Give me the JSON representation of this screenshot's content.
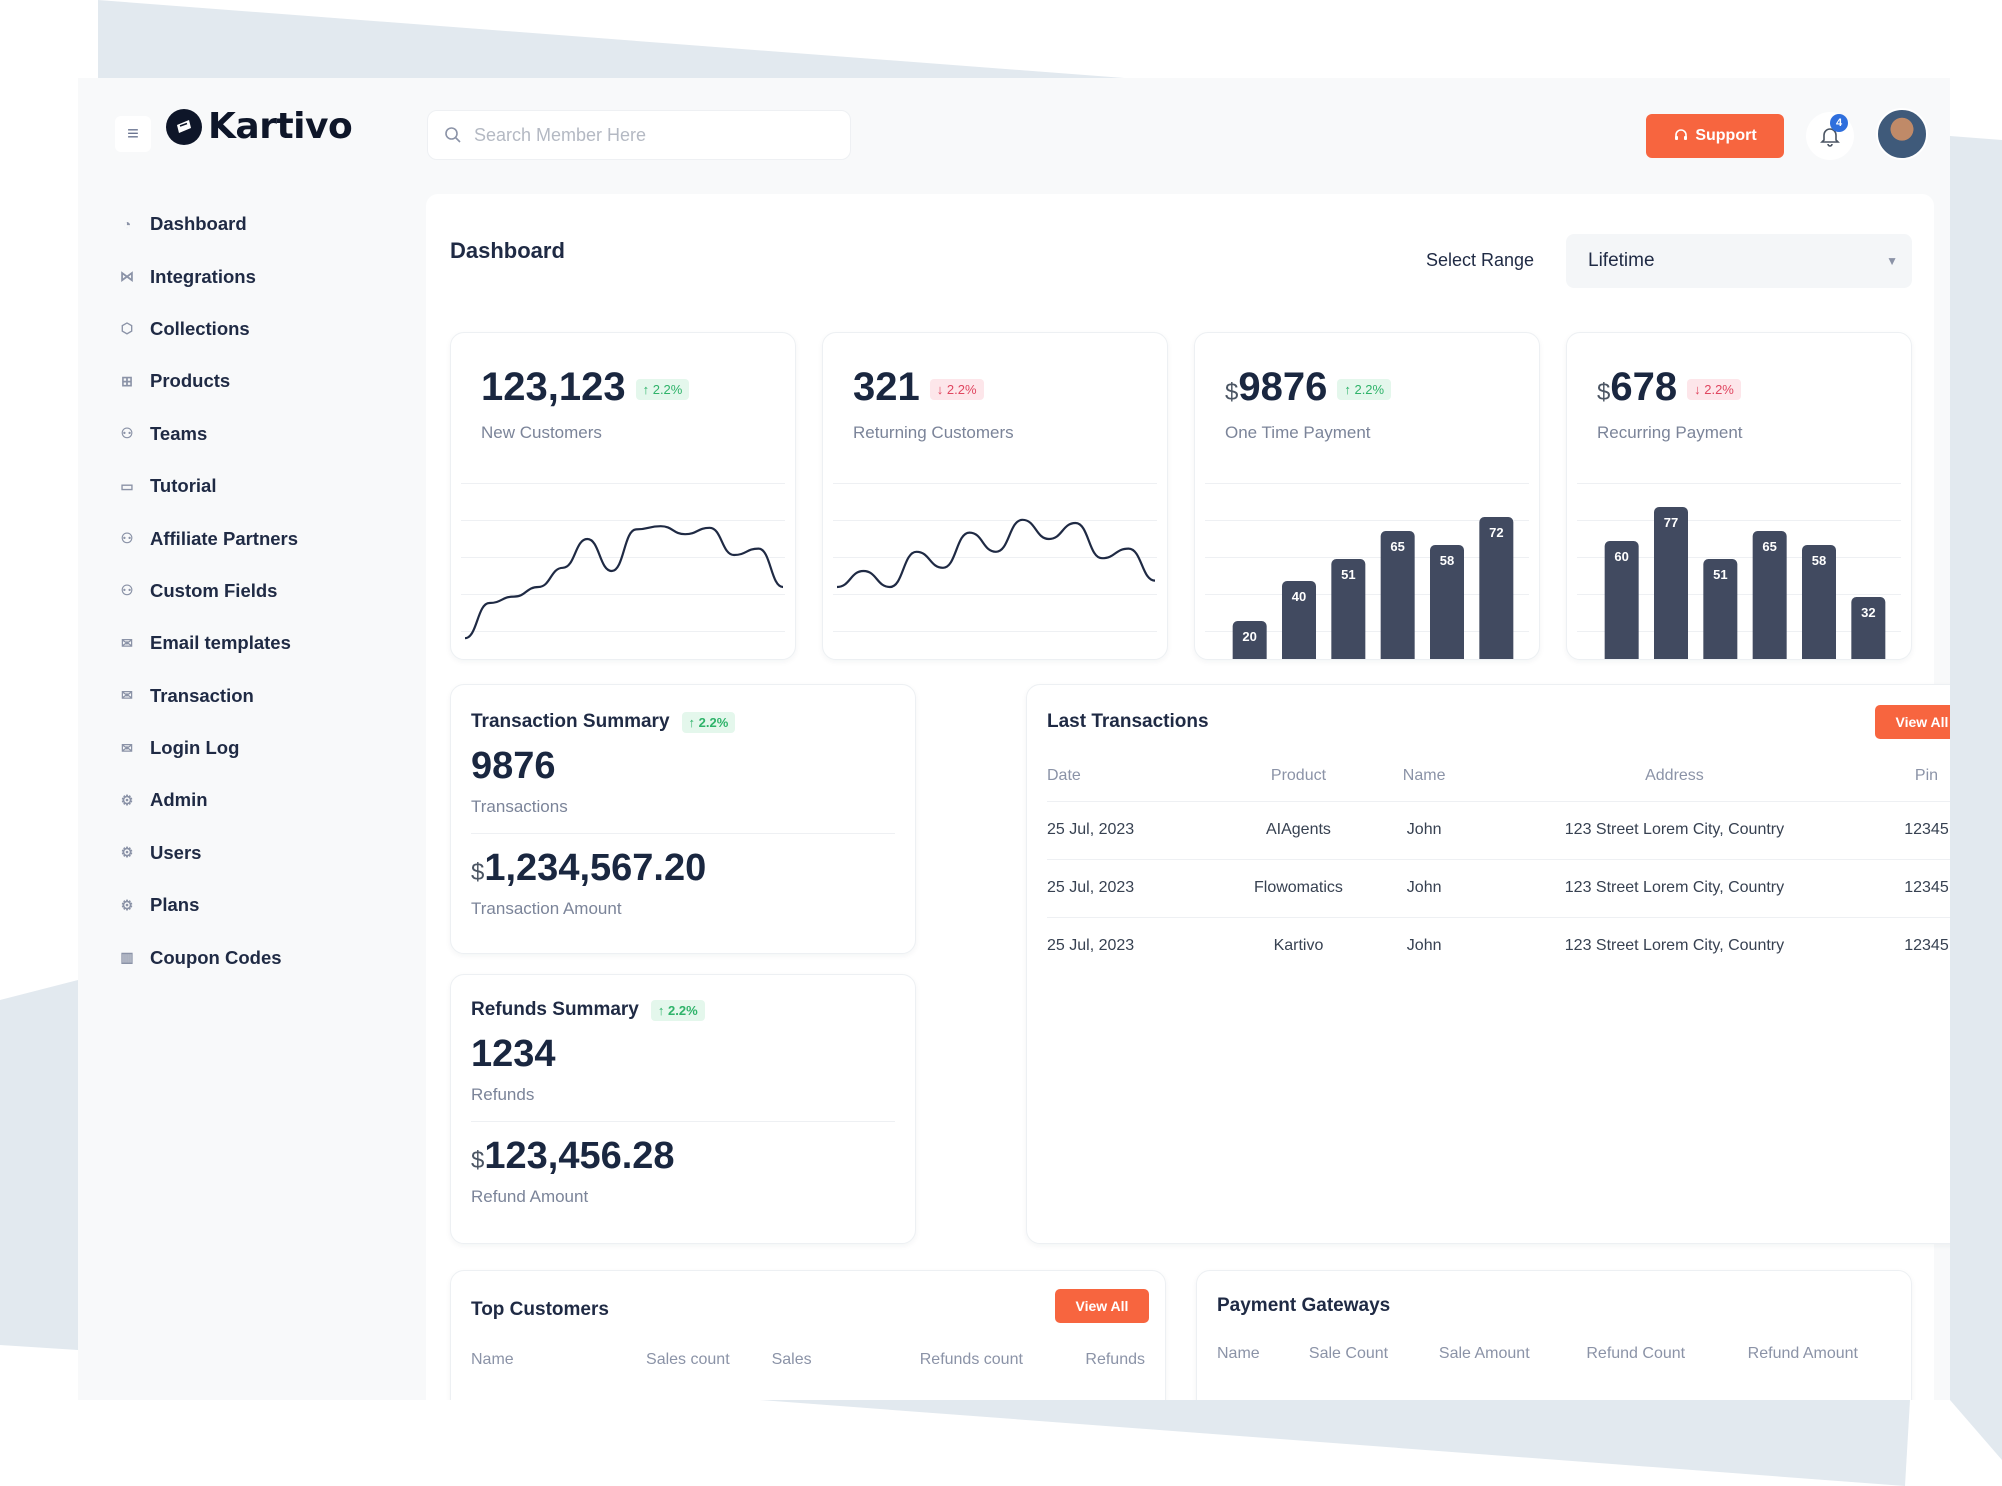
{
  "brand": {
    "name": "Kartivo"
  },
  "header": {
    "search_placeholder": "Search Member Here",
    "support_label": "Support",
    "notification_count": "4"
  },
  "sidebar": {
    "items": [
      {
        "label": "Dashboard",
        "icon": "dashboard-icon"
      },
      {
        "label": "Integrations",
        "icon": "integrations-icon"
      },
      {
        "label": "Collections",
        "icon": "collections-icon"
      },
      {
        "label": "Products",
        "icon": "products-icon"
      },
      {
        "label": "Teams",
        "icon": "teams-icon"
      },
      {
        "label": "Tutorial",
        "icon": "video-icon"
      },
      {
        "label": "Affiliate Partners",
        "icon": "partners-icon"
      },
      {
        "label": "Custom Fields",
        "icon": "fields-icon"
      },
      {
        "label": "Email templates",
        "icon": "mail-icon"
      },
      {
        "label": "Transaction",
        "icon": "mail-icon"
      },
      {
        "label": "Login Log",
        "icon": "mail-icon"
      },
      {
        "label": "Admin",
        "icon": "users-gear-icon"
      },
      {
        "label": "Users",
        "icon": "users-gear-icon"
      },
      {
        "label": "Plans",
        "icon": "users-gear-icon"
      },
      {
        "label": "Coupon Codes",
        "icon": "barcode-icon"
      }
    ]
  },
  "main": {
    "title": "Dashboard",
    "range_label": "Select Range",
    "range_value": "Lifetime"
  },
  "kpis": [
    {
      "value": "123,123",
      "currency": "",
      "change": "2.2%",
      "direction": "up",
      "label": "New Customers"
    },
    {
      "value": "321",
      "currency": "",
      "change": "2.2%",
      "direction": "down",
      "label": "Returning Customers"
    },
    {
      "value": "9876",
      "currency": "$",
      "change": "2.2%",
      "direction": "up",
      "label": "One Time Payment"
    },
    {
      "value": "678",
      "currency": "$",
      "change": "2.2%",
      "direction": "down",
      "label": "Recurring Payment"
    }
  ],
  "chart_data": [
    {
      "type": "line",
      "series": [
        {
          "values": [
            8,
            30,
            34,
            40,
            52,
            70,
            50,
            76,
            78,
            73,
            77,
            60,
            64,
            40
          ]
        }
      ]
    },
    {
      "type": "line",
      "series": [
        {
          "values": [
            40,
            50,
            40,
            62,
            52,
            74,
            62,
            82,
            70,
            80,
            58,
            64,
            44
          ]
        }
      ]
    },
    {
      "type": "bar",
      "values": [
        20,
        40,
        51,
        65,
        58,
        72
      ],
      "labels": [
        "20",
        "40",
        "51",
        "65",
        "58",
        "72"
      ]
    },
    {
      "type": "bar",
      "values": [
        60,
        77,
        51,
        65,
        58,
        32
      ],
      "labels": [
        "60",
        "77",
        "51",
        "65",
        "58",
        "32"
      ]
    }
  ],
  "transaction_summary": {
    "title": "Transaction Summary",
    "change": "2.2%",
    "count": "9876",
    "count_label": "Transactions",
    "currency": "$",
    "amount": "1,234,567.20",
    "amount_label": "Transaction Amount"
  },
  "refunds_summary": {
    "title": "Refunds Summary",
    "change": "2.2%",
    "count": "1234",
    "count_label": "Refunds",
    "currency": "$",
    "amount": "123,456.28",
    "amount_label": "Refund Amount"
  },
  "last_transactions": {
    "title": "Last Transactions",
    "view_all": "View All",
    "columns": [
      "Date",
      "Product",
      "Name",
      "Address",
      "Pin"
    ],
    "rows": [
      [
        "25 Jul, 2023",
        "AIAgents",
        "John",
        "123 Street Lorem City, Country",
        "12345"
      ],
      [
        "25 Jul, 2023",
        "Flowomatics",
        "John",
        "123 Street Lorem City, Country",
        "12345"
      ],
      [
        "25 Jul, 2023",
        "Kartivo",
        "John",
        "123 Street Lorem City, Country",
        "12345"
      ]
    ]
  },
  "top_customers": {
    "title": "Top Customers",
    "view_all": "View All",
    "columns": [
      "Name",
      "Sales count",
      "Sales",
      "Refunds count",
      "Refunds"
    ]
  },
  "payment_gateways": {
    "title": "Payment Gateways",
    "columns": [
      "Name",
      "Sale Count",
      "Sale Amount",
      "Refund Count",
      "Refund Amount"
    ]
  },
  "colors": {
    "accent": "#f7653f",
    "bar": "#414a60",
    "up": "#2fb36a",
    "down": "#e04660",
    "link": "#2f6fdd"
  }
}
